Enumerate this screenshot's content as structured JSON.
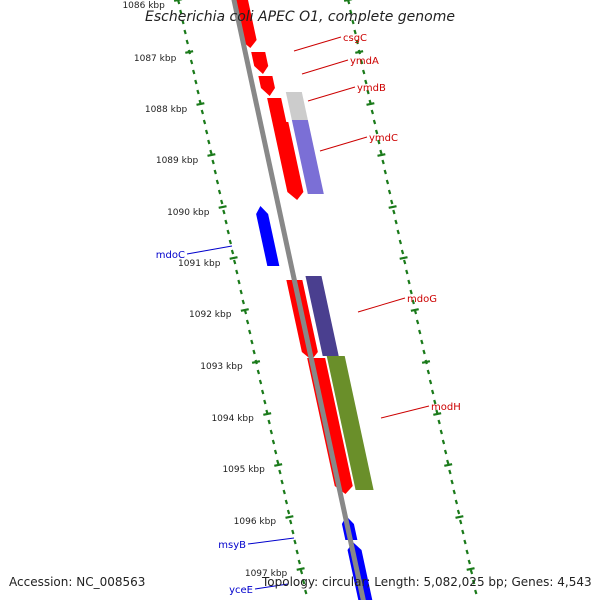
{
  "title": "Escherichia coli APEC O1, complete genome",
  "accession": "Accession: NC_008563",
  "summary": "Topology: circular; Length: 5,082,025 bp; Genes: 4,543",
  "colors": {
    "forward_gene": "#ff0000",
    "reverse_gene": "#0000ff",
    "backbone": "#888888",
    "tick": "#1a7a1a",
    "feature_grey": "#cccccc",
    "feature_purple": "#7b6fd6",
    "feature_dark_purple": "#4a3f8f",
    "feature_olive": "#6a8f2a"
  },
  "scale": {
    "labels": [
      "1086 kbp",
      "1087 kbp",
      "1088 kbp",
      "1089 kbp",
      "1090 kbp",
      "1091 kbp",
      "1092 kbp",
      "1093 kbp",
      "1094 kbp",
      "1095 kbp",
      "1096 kbp",
      "1097 kbp"
    ]
  },
  "genes": [
    {
      "name": "csgC",
      "strand": "forward"
    },
    {
      "name": "ymdA",
      "strand": "forward"
    },
    {
      "name": "ymdB",
      "strand": "forward"
    },
    {
      "name": "ymdC",
      "strand": "forward"
    },
    {
      "name": "mdoC",
      "strand": "reverse"
    },
    {
      "name": "mdoG",
      "strand": "forward"
    },
    {
      "name": "modH",
      "strand": "forward"
    },
    {
      "name": "msyB",
      "strand": "reverse"
    },
    {
      "name": "yceE",
      "strand": "reverse"
    }
  ]
}
